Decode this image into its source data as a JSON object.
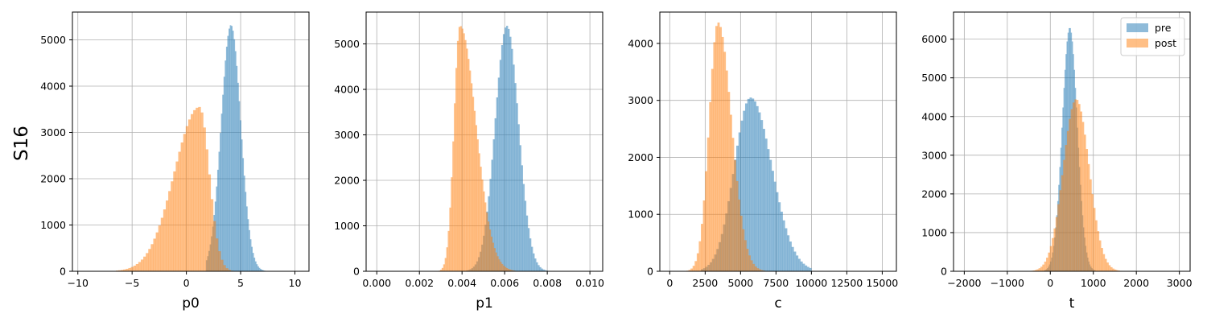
{
  "figure": {
    "row_label": "S16"
  },
  "colors": {
    "pre": "#1f77b4",
    "post": "#ff7f0e",
    "bar_alpha": 0.5,
    "grid": "#b0b0b0"
  },
  "legend": {
    "location": "top-right",
    "entries": [
      "pre",
      "post"
    ]
  },
  "chart_data": [
    {
      "type": "histogram",
      "xlabel": "p0",
      "ylabel": "",
      "xlim": [
        -10.5,
        11.3
      ],
      "ylim": [
        0,
        5600
      ],
      "xticks": [
        -10,
        -5,
        0,
        5,
        10
      ],
      "xtick_labels": [
        "−10",
        "−5",
        "0",
        "5",
        "10"
      ],
      "yticks": [
        0,
        1000,
        2000,
        3000,
        4000,
        5000
      ],
      "ytick_labels": [
        "0",
        "1000",
        "2000",
        "3000",
        "4000",
        "5000"
      ],
      "grid": true,
      "series": [
        {
          "name": "pre",
          "dist": "normal",
          "center": 4.1,
          "sigma": 0.9,
          "peak": 5320,
          "range": [
            1.8,
            7.6
          ]
        },
        {
          "name": "post",
          "dist": "skew-left",
          "center": 1.2,
          "sigma_left": 2.3,
          "sigma_right": 0.9,
          "peak": 3550,
          "range": [
            -6.5,
            5.0
          ]
        }
      ]
    },
    {
      "type": "histogram",
      "xlabel": "p1",
      "ylabel": "",
      "xlim": [
        -0.0005,
        0.0106
      ],
      "ylim": [
        0,
        5700
      ],
      "xticks": [
        0.0,
        0.002,
        0.004,
        0.006,
        0.008,
        0.01
      ],
      "xtick_labels": [
        "0.000",
        "0.002",
        "0.004",
        "0.006",
        "0.008",
        "0.010"
      ],
      "yticks": [
        0,
        1000,
        2000,
        3000,
        4000,
        5000
      ],
      "ytick_labels": [
        "0",
        "1000",
        "2000",
        "3000",
        "4000",
        "5000"
      ],
      "grid": true,
      "series": [
        {
          "name": "pre",
          "dist": "normal",
          "center": 0.0061,
          "sigma": 0.00055,
          "peak": 5400,
          "range": [
            0.0042,
            0.0081
          ]
        },
        {
          "name": "post",
          "dist": "skew-right",
          "center": 0.0039,
          "sigma_left": 0.00028,
          "sigma_right": 0.00075,
          "peak": 5400,
          "range": [
            0.0029,
            0.0065
          ]
        }
      ]
    },
    {
      "type": "histogram",
      "xlabel": "c",
      "ylabel": "",
      "xlim": [
        -700,
        16000
      ],
      "ylim": [
        0,
        4550
      ],
      "xticks": [
        0,
        2500,
        5000,
        7500,
        10000,
        12500,
        15000
      ],
      "xtick_labels": [
        "0",
        "2500",
        "5000",
        "7500",
        "10000",
        "12500",
        "15000"
      ],
      "yticks": [
        0,
        1000,
        2000,
        3000,
        4000
      ],
      "ytick_labels": [
        "0",
        "1000",
        "2000",
        "3000",
        "4000"
      ],
      "grid": true,
      "series": [
        {
          "name": "pre",
          "dist": "skew-right",
          "center": 5700,
          "sigma_left": 1150,
          "sigma_right": 1500,
          "peak": 3050,
          "range": [
            2200,
            10000
          ]
        },
        {
          "name": "post",
          "dist": "skew-right",
          "center": 3400,
          "sigma_left": 620,
          "sigma_right": 950,
          "peak": 4370,
          "range": [
            300,
            7600
          ]
        }
      ]
    },
    {
      "type": "histogram",
      "xlabel": "t",
      "ylabel": "",
      "xlim": [
        -2250,
        3250
      ],
      "ylim": [
        0,
        6700
      ],
      "xticks": [
        -2000,
        -1000,
        0,
        1000,
        2000,
        3000
      ],
      "xtick_labels": [
        "−2000",
        "−1000",
        "0",
        "1000",
        "2000",
        "3000"
      ],
      "yticks": [
        0,
        1000,
        2000,
        3000,
        4000,
        5000,
        6000
      ],
      "ytick_labels": [
        "0",
        "1000",
        "2000",
        "3000",
        "4000",
        "5000",
        "6000"
      ],
      "grid": true,
      "series": [
        {
          "name": "pre",
          "dist": "normal",
          "center": 450,
          "sigma": 175,
          "peak": 6300,
          "range": [
            -150,
            1050
          ]
        },
        {
          "name": "post",
          "dist": "normal",
          "center": 600,
          "sigma": 300,
          "peak": 4450,
          "range": [
            -450,
            1750
          ]
        }
      ]
    }
  ]
}
